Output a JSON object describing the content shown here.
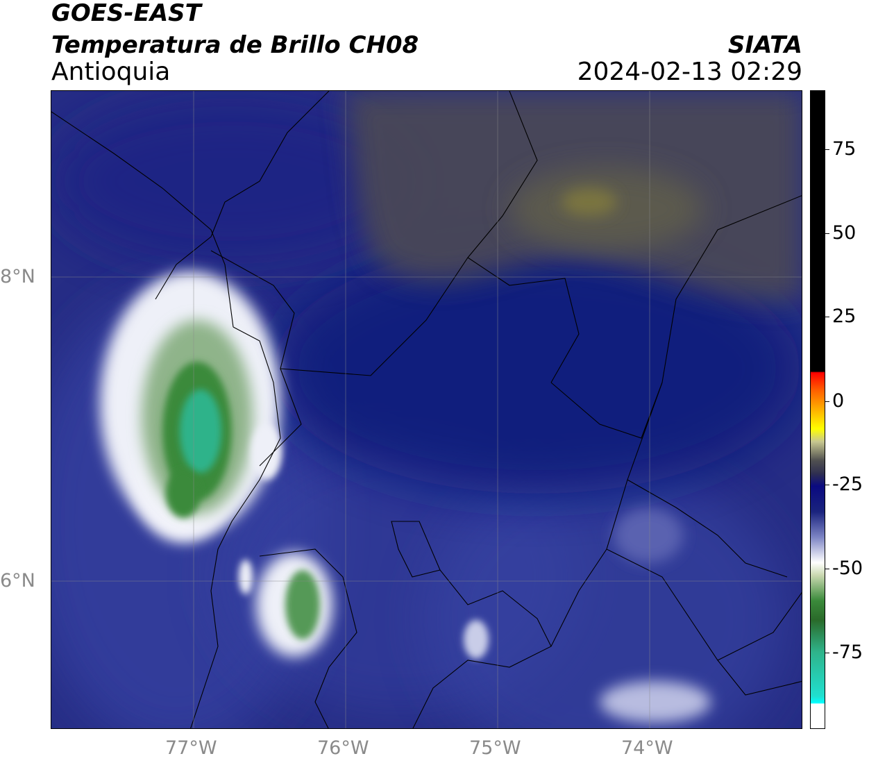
{
  "header": {
    "satellite": "GOES-EAST",
    "product": "Temperatura de Brillo CH08",
    "region": "Antioquia",
    "agency": "SIATA",
    "timestamp": "2024-02-13 02:29"
  },
  "map": {
    "lat_labels": [
      "8°N",
      "6°N"
    ],
    "lon_labels": [
      "77°W",
      "76°W",
      "75°W",
      "74°W"
    ],
    "colors": {
      "background": "#262d85",
      "deep_blue": "#0f1a7a",
      "brown_haze": "#4b4a55",
      "olive": "#6b6b45",
      "white_cloud": "#eef0f8",
      "green": "#3a8a3a",
      "teal": "#2fb38a"
    }
  },
  "colorbar": {
    "ticks": [
      "75",
      "50",
      "25",
      "0",
      "-25",
      "-50",
      "-75"
    ],
    "tick_values": [
      75,
      50,
      25,
      0,
      -25,
      -50,
      -75
    ],
    "range": [
      -95,
      90
    ]
  }
}
